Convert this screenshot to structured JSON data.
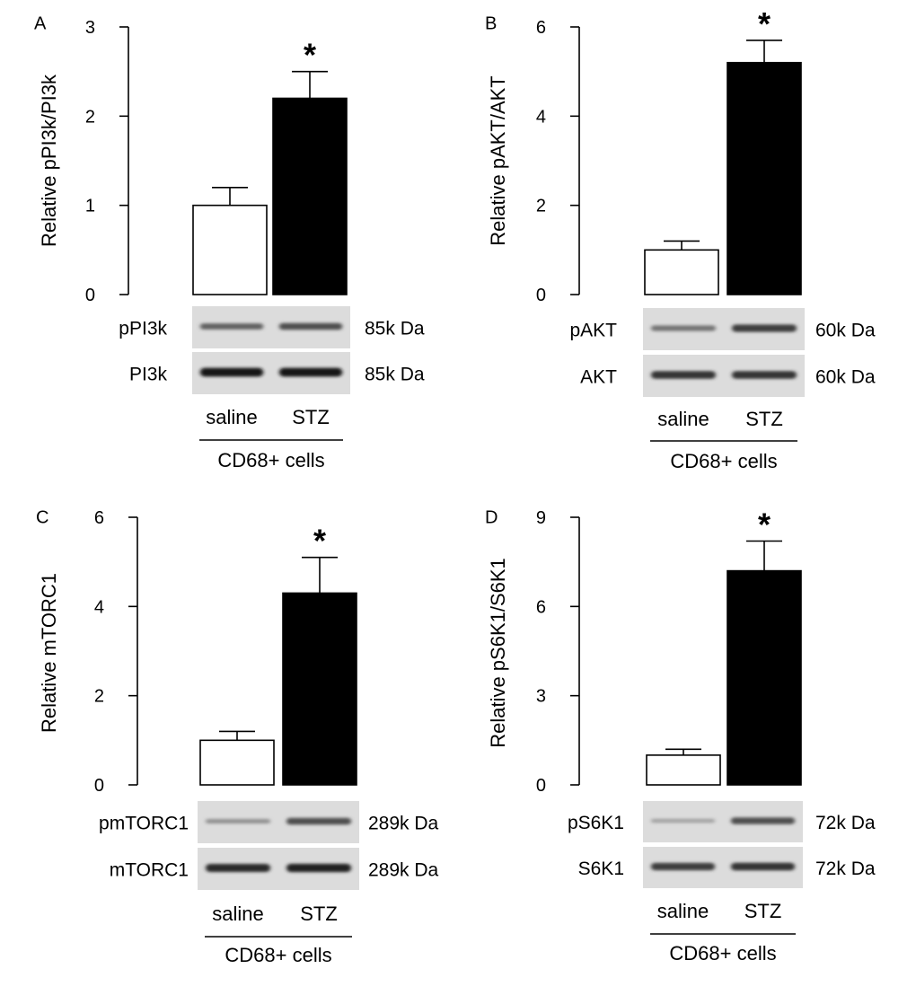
{
  "figure": {
    "group_labels": [
      "saline",
      "STZ"
    ],
    "group_caption": "CD68+ cells"
  },
  "chart_data": [
    {
      "type": "bar",
      "panel_letter": "A",
      "categories": [
        "saline",
        "STZ"
      ],
      "values": [
        1.0,
        2.2
      ],
      "errors": [
        0.2,
        0.3
      ],
      "bar_colors": [
        "#ffffff",
        "#000000"
      ],
      "title": "",
      "xlabel": "",
      "ylabel": "Relative pPI3k/PI3k",
      "ylim": [
        0,
        3
      ],
      "yticks": [
        0,
        1,
        2,
        3
      ],
      "significance": [
        null,
        "*"
      ],
      "grid": false,
      "blots": [
        {
          "label": "pPI3k",
          "kda": "85k Da",
          "saline_intensity": 0.55,
          "stz_intensity": 0.65
        },
        {
          "label": "PI3k",
          "kda": "85k Da",
          "saline_intensity": 0.95,
          "stz_intensity": 0.95
        }
      ]
    },
    {
      "type": "bar",
      "panel_letter": "B",
      "categories": [
        "saline",
        "STZ"
      ],
      "values": [
        1.0,
        5.2
      ],
      "errors": [
        0.2,
        0.5
      ],
      "bar_colors": [
        "#ffffff",
        "#000000"
      ],
      "title": "",
      "xlabel": "",
      "ylabel": "Relative pAKT/AKT",
      "ylim": [
        0,
        6
      ],
      "yticks": [
        0,
        2,
        4,
        6
      ],
      "significance": [
        null,
        "*"
      ],
      "grid": false,
      "blots": [
        {
          "label": "pAKT",
          "kda": "60k Da",
          "saline_intensity": 0.45,
          "stz_intensity": 0.75
        },
        {
          "label": "AKT",
          "kda": "60k Da",
          "saline_intensity": 0.8,
          "stz_intensity": 0.8
        }
      ]
    },
    {
      "type": "bar",
      "panel_letter": "C",
      "categories": [
        "saline",
        "STZ"
      ],
      "values": [
        1.0,
        4.3
      ],
      "errors": [
        0.2,
        0.8
      ],
      "bar_colors": [
        "#ffffff",
        "#000000"
      ],
      "title": "",
      "xlabel": "",
      "ylabel": "Relative mTORC1",
      "ylim": [
        0,
        6
      ],
      "yticks": [
        0,
        2,
        4,
        6
      ],
      "significance": [
        null,
        "*"
      ],
      "grid": false,
      "blots": [
        {
          "label": "pmTORC1",
          "kda": "289k Da",
          "saline_intensity": 0.3,
          "stz_intensity": 0.65
        },
        {
          "label": "mTORC1",
          "kda": "289k Da",
          "saline_intensity": 0.85,
          "stz_intensity": 0.9
        }
      ]
    },
    {
      "type": "bar",
      "panel_letter": "D",
      "categories": [
        "saline",
        "STZ"
      ],
      "values": [
        1.0,
        7.2
      ],
      "errors": [
        0.2,
        1.0
      ],
      "bar_colors": [
        "#ffffff",
        "#000000"
      ],
      "title": "",
      "xlabel": "",
      "ylabel": "Relative pS6K1/S6K1",
      "ylim": [
        0,
        9
      ],
      "yticks": [
        0,
        3,
        6,
        9
      ],
      "significance": [
        null,
        "*"
      ],
      "grid": false,
      "blots": [
        {
          "label": "pS6K1",
          "kda": "72k Da",
          "saline_intensity": 0.2,
          "stz_intensity": 0.65
        },
        {
          "label": "S6K1",
          "kda": "72k Da",
          "saline_intensity": 0.75,
          "stz_intensity": 0.8
        }
      ]
    }
  ]
}
